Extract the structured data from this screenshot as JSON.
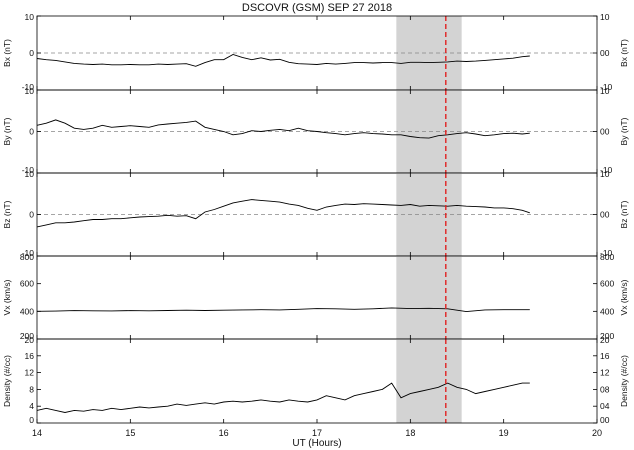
{
  "chart_data": {
    "type": "line",
    "title": "DSCOVR  (GSM) SEP 27 2018",
    "xlabel": "UT (Hours)",
    "xlim": [
      14,
      20
    ],
    "xticks": [
      "14",
      "15",
      "16",
      "17",
      "18",
      "19",
      "20"
    ],
    "highlight": {
      "x_start": 17.85,
      "x_end": 18.55
    },
    "marker_line": {
      "x": 18.38
    },
    "panels": [
      {
        "id": "bx",
        "ylabel": "Bx (nT)",
        "ylim": [
          -10,
          10
        ],
        "yticks": [
          10,
          0,
          -10
        ],
        "left_tick_labels": [
          "10",
          "0",
          "-10"
        ],
        "right_tick_labels": [
          "10",
          "00",
          "-10"
        ],
        "zero_line": 0,
        "x": [
          14.0,
          14.1,
          14.2,
          14.3,
          14.4,
          14.5,
          14.6,
          14.7,
          14.8,
          14.9,
          15.0,
          15.1,
          15.2,
          15.3,
          15.4,
          15.5,
          15.6,
          15.7,
          15.8,
          15.9,
          16.0,
          16.1,
          16.2,
          16.3,
          16.4,
          16.5,
          16.6,
          16.7,
          16.8,
          16.9,
          17.0,
          17.1,
          17.2,
          17.3,
          17.4,
          17.5,
          17.6,
          17.7,
          17.8,
          17.9,
          18.0,
          18.1,
          18.2,
          18.3,
          18.4,
          18.5,
          18.6,
          18.7,
          18.8,
          18.9,
          19.0,
          19.1,
          19.2,
          19.28
        ],
        "y": [
          -1.5,
          -1.8,
          -2.0,
          -2.4,
          -2.8,
          -3.0,
          -3.1,
          -3.0,
          -3.2,
          -3.2,
          -3.1,
          -3.2,
          -3.2,
          -3.0,
          -3.1,
          -3.0,
          -2.9,
          -3.6,
          -2.6,
          -1.8,
          -1.8,
          -0.4,
          -1.2,
          -1.8,
          -1.3,
          -1.9,
          -1.7,
          -2.5,
          -2.9,
          -3.0,
          -3.1,
          -2.8,
          -3.0,
          -2.8,
          -2.6,
          -2.6,
          -2.7,
          -2.6,
          -2.6,
          -2.8,
          -2.5,
          -2.5,
          -2.6,
          -2.5,
          -2.4,
          -2.2,
          -2.3,
          -2.2,
          -2.0,
          -1.8,
          -1.6,
          -1.4,
          -1.0,
          -0.8
        ]
      },
      {
        "id": "by",
        "ylabel": "By (nT)",
        "ylim": [
          -10,
          10
        ],
        "yticks": [
          10,
          0,
          -10
        ],
        "left_tick_labels": [
          "10",
          "0",
          "-10"
        ],
        "right_tick_labels": [
          "10",
          "00",
          "-10"
        ],
        "zero_line": 0,
        "x": [
          14.0,
          14.1,
          14.2,
          14.3,
          14.4,
          14.5,
          14.6,
          14.7,
          14.8,
          14.9,
          15.0,
          15.1,
          15.2,
          15.3,
          15.4,
          15.5,
          15.6,
          15.7,
          15.8,
          15.9,
          16.0,
          16.1,
          16.2,
          16.3,
          16.4,
          16.5,
          16.6,
          16.7,
          16.8,
          16.9,
          17.0,
          17.1,
          17.2,
          17.3,
          17.4,
          17.5,
          17.6,
          17.7,
          17.8,
          17.9,
          18.0,
          18.1,
          18.2,
          18.3,
          18.4,
          18.5,
          18.6,
          18.7,
          18.8,
          18.9,
          19.0,
          19.1,
          19.2,
          19.28
        ],
        "y": [
          1.5,
          2.0,
          2.8,
          2.0,
          0.8,
          0.5,
          0.8,
          1.5,
          1.0,
          1.2,
          1.4,
          1.2,
          1.0,
          1.6,
          1.8,
          2.0,
          2.2,
          2.5,
          1.0,
          0.5,
          0.0,
          -0.8,
          -0.5,
          0.2,
          0.0,
          0.3,
          0.5,
          0.2,
          0.8,
          0.2,
          0.0,
          -0.3,
          -0.5,
          -0.8,
          -0.5,
          -0.3,
          -0.5,
          -0.6,
          -0.8,
          -0.8,
          -1.2,
          -1.5,
          -1.6,
          -1.0,
          -0.8,
          -0.5,
          -0.3,
          -0.6,
          -1.0,
          -0.8,
          -0.5,
          -0.4,
          -0.6,
          -0.4
        ]
      },
      {
        "id": "bz",
        "ylabel": "Bz (nT)",
        "ylim": [
          -10,
          10
        ],
        "yticks": [
          10,
          0,
          -10
        ],
        "left_tick_labels": [
          "10",
          "0",
          "-10"
        ],
        "right_tick_labels": [
          "10",
          "00",
          "-10"
        ],
        "zero_line": 0,
        "x": [
          14.0,
          14.1,
          14.2,
          14.3,
          14.4,
          14.5,
          14.6,
          14.7,
          14.8,
          14.9,
          15.0,
          15.1,
          15.2,
          15.3,
          15.4,
          15.5,
          15.6,
          15.7,
          15.8,
          15.9,
          16.0,
          16.1,
          16.2,
          16.3,
          16.4,
          16.5,
          16.6,
          16.7,
          16.8,
          16.9,
          17.0,
          17.1,
          17.2,
          17.3,
          17.4,
          17.5,
          17.6,
          17.7,
          17.8,
          17.9,
          18.0,
          18.1,
          18.2,
          18.3,
          18.4,
          18.5,
          18.6,
          18.7,
          18.8,
          18.9,
          19.0,
          19.1,
          19.2,
          19.28
        ],
        "y": [
          -3.0,
          -2.5,
          -2.0,
          -2.0,
          -1.8,
          -1.5,
          -1.2,
          -1.2,
          -1.0,
          -1.0,
          -0.8,
          -0.6,
          -0.5,
          -0.4,
          -0.2,
          -0.4,
          -0.3,
          -1.0,
          0.6,
          1.2,
          2.0,
          2.8,
          3.2,
          3.6,
          3.4,
          3.2,
          3.0,
          2.5,
          2.2,
          1.5,
          1.0,
          1.8,
          2.2,
          2.5,
          2.4,
          2.6,
          2.5,
          2.4,
          2.3,
          2.2,
          2.4,
          2.0,
          2.2,
          2.1,
          2.0,
          2.2,
          2.0,
          1.9,
          1.8,
          1.6,
          1.6,
          1.4,
          1.0,
          0.4
        ]
      },
      {
        "id": "vx",
        "ylabel": "Vx (km/s)",
        "ylim": [
          200,
          800
        ],
        "yticks": [
          800,
          600,
          400,
          200
        ],
        "left_tick_labels": [
          "800",
          "600",
          "400",
          "200"
        ],
        "right_tick_labels": [
          "800",
          "600",
          "400",
          "200"
        ],
        "zero_line": null,
        "x": [
          14.0,
          14.2,
          14.4,
          14.6,
          14.8,
          15.0,
          15.2,
          15.4,
          15.6,
          15.8,
          16.0,
          16.2,
          16.4,
          16.6,
          16.8,
          17.0,
          17.2,
          17.4,
          17.6,
          17.8,
          18.0,
          18.2,
          18.4,
          18.6,
          18.8,
          19.0,
          19.28
        ],
        "y": [
          400,
          402,
          405,
          404,
          403,
          405,
          404,
          406,
          408,
          406,
          408,
          410,
          412,
          410,
          415,
          420,
          418,
          415,
          418,
          425,
          420,
          422,
          418,
          398,
          410,
          412,
          412
        ]
      },
      {
        "id": "density",
        "ylabel": "Density (#/cc)",
        "ylim": [
          0,
          20
        ],
        "yticks": [
          20,
          16,
          12,
          8,
          4,
          0
        ],
        "left_tick_labels": [
          "20",
          "16",
          "12",
          "8",
          "4",
          "0"
        ],
        "right_tick_labels": [
          "20",
          "16",
          "12",
          "08",
          "04",
          "00"
        ],
        "zero_line": null,
        "x": [
          14.0,
          14.1,
          14.2,
          14.3,
          14.4,
          14.5,
          14.6,
          14.7,
          14.8,
          14.9,
          15.0,
          15.1,
          15.2,
          15.3,
          15.4,
          15.5,
          15.6,
          15.7,
          15.8,
          15.9,
          16.0,
          16.1,
          16.2,
          16.3,
          16.4,
          16.5,
          16.6,
          16.7,
          16.8,
          16.9,
          17.0,
          17.1,
          17.2,
          17.3,
          17.4,
          17.5,
          17.6,
          17.7,
          17.8,
          17.9,
          18.0,
          18.1,
          18.2,
          18.3,
          18.4,
          18.5,
          18.6,
          18.7,
          18.8,
          18.9,
          19.0,
          19.1,
          19.2,
          19.28
        ],
        "y": [
          3.0,
          3.5,
          3.0,
          2.5,
          3.0,
          2.8,
          3.2,
          3.0,
          3.5,
          3.2,
          3.5,
          3.8,
          3.6,
          3.8,
          4.0,
          4.5,
          4.2,
          4.5,
          4.8,
          4.5,
          5.0,
          5.2,
          5.0,
          5.2,
          5.5,
          5.2,
          5.0,
          5.5,
          5.2,
          5.0,
          5.5,
          6.5,
          6.0,
          5.5,
          6.5,
          7.0,
          7.5,
          8.0,
          9.5,
          6.0,
          7.0,
          7.5,
          8.0,
          8.5,
          9.5,
          8.5,
          8.0,
          7.0,
          7.5,
          8.0,
          8.5,
          9.0,
          9.5,
          9.5
        ]
      }
    ]
  }
}
